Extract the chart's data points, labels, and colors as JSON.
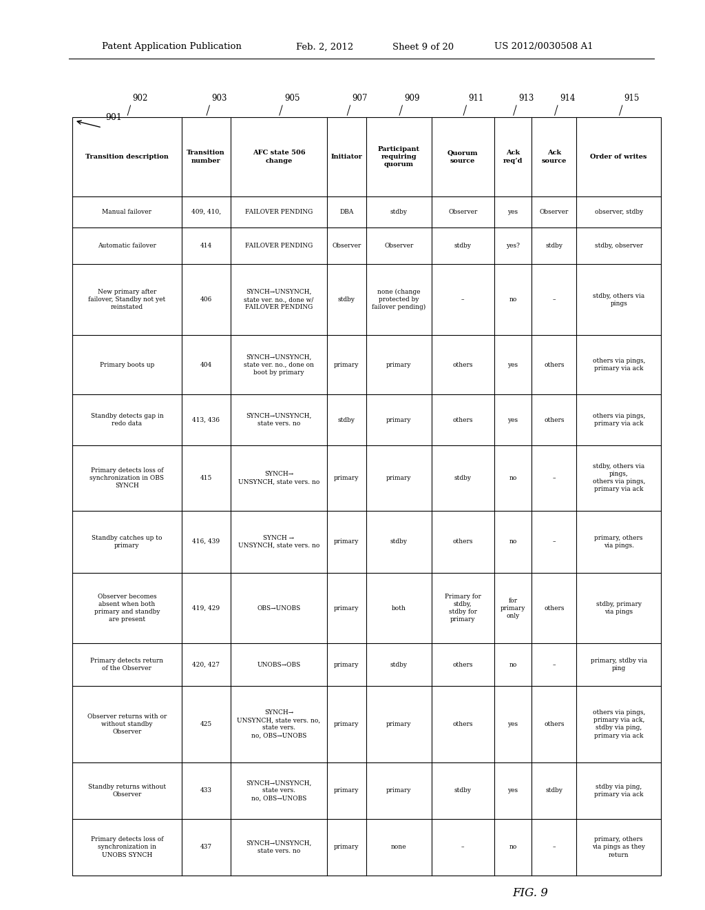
{
  "header_line1": "Patent Application Publication",
  "header_date": "Feb. 2, 2012",
  "header_sheet": "Sheet 9 of 20",
  "header_patent": "US 2012/0030508 A1",
  "fig_label": "FIG. 9",
  "col_headers": [
    "Transition description",
    "Transition\nnumber",
    "AFC state 506\nchange",
    "Initiator",
    "Participant\nrequiring\nquorum",
    "Quorum\nsource",
    "Ack\nreq’d",
    "Ack\nsource",
    "Order of writes"
  ],
  "col_refs": [
    "902",
    "903",
    "905",
    "907",
    "909",
    "911",
    "913",
    "914",
    "915"
  ],
  "rows": [
    {
      "desc": "Manual failover",
      "trans_num": "409, 410,",
      "afc_change": "FAILOVER PENDING",
      "initiator": "DBA",
      "participant": "stdby",
      "quorum": "Observer",
      "ack_reqd": "yes",
      "ack_source": "Observer",
      "order_writes": "observer, stdby"
    },
    {
      "desc": "Automatic failover",
      "trans_num": "414",
      "afc_change": "FAILOVER PENDING",
      "initiator": "Observer",
      "participant": "Observer",
      "quorum": "stdby",
      "ack_reqd": "yes?",
      "ack_source": "stdby",
      "order_writes": "stdby, observer"
    },
    {
      "desc": "New primary after\nfailover, Standby not yet\nreinstated",
      "trans_num": "406",
      "afc_change": "SYNCH→UNSYNCH,\nstate ver. no., done w/\nFAILOVER PENDING",
      "initiator": "stdby",
      "participant": "none (change\nprotected by\nfailover pending)",
      "quorum": "–",
      "ack_reqd": "no",
      "ack_source": "–",
      "order_writes": "stdby, others via\npings"
    },
    {
      "desc": "Primary boots up",
      "trans_num": "404",
      "afc_change": "SYNCH→UNSYNCH,\nstate ver. no., done on\nboot by primary",
      "initiator": "primary",
      "participant": "primary",
      "quorum": "others",
      "ack_reqd": "yes",
      "ack_source": "others",
      "order_writes": "others via pings,\nprimary via ack"
    },
    {
      "desc": "Standby detects gap in\nredo data",
      "trans_num": "413, 436",
      "afc_change": "SYNCH→UNSYNCH,\nstate vers. no",
      "initiator": "stdby",
      "participant": "primary",
      "quorum": "others",
      "ack_reqd": "yes",
      "ack_source": "others",
      "order_writes": "others via pings,\nprimary via ack"
    },
    {
      "desc": "Primary detects loss of\nsynchronization in OBS\nSYNCH",
      "trans_num": "415",
      "afc_change": "SYNCH→\nUNSYNCH, state vers. no",
      "initiator": "primary",
      "participant": "primary",
      "quorum": "stdby",
      "ack_reqd": "no",
      "ack_source": "–",
      "order_writes": "stdby, others via\npings,\nothers via pings,\nprimary via ack"
    },
    {
      "desc": "Standby catches up to\nprimary",
      "trans_num": "416, 439",
      "afc_change": "SYNCH →\nUNSYNCH, state vers. no",
      "initiator": "primary",
      "participant": "stdby",
      "quorum": "others",
      "ack_reqd": "no",
      "ack_source": "–",
      "order_writes": "primary, others\nvia pings."
    },
    {
      "desc": "Observer becomes\nabsent when both\nprimary and standby\nare present",
      "trans_num": "419, 429",
      "afc_change": "OBS→UNOBS",
      "initiator": "primary",
      "participant": "both",
      "quorum": "Primary for\nstdby,\nstdby for\nprimary",
      "ack_reqd": "for\nprimary\nonly",
      "ack_source": "others",
      "order_writes": "stdby, primary\nvia pings"
    },
    {
      "desc": "Primary detects return\nof the Observer",
      "trans_num": "420, 427",
      "afc_change": "UNOBS→OBS",
      "initiator": "primary",
      "participant": "stdby",
      "quorum": "others",
      "ack_reqd": "no",
      "ack_source": "–",
      "order_writes": "primary, stdby via\nping"
    },
    {
      "desc": "Observer returns with or\nwithout standby\nObserver",
      "trans_num": "425",
      "afc_change": "SYNCH→\nUNSYNCH, state vers. no,\nstate vers.\nno, OBS→UNOBS",
      "initiator": "primary",
      "participant": "primary",
      "quorum": "others",
      "ack_reqd": "yes",
      "ack_source": "others",
      "order_writes": "others via pings,\nprimary via ack,\nstdby via ping,\nprimary via ack"
    },
    {
      "desc": "Standby returns without\nObserver",
      "trans_num": "433",
      "afc_change": "SYNCH→UNSYNCH,\nstate vers.\nno, OBS→UNOBS",
      "initiator": "primary",
      "participant": "primary",
      "quorum": "stdby",
      "ack_reqd": "yes",
      "ack_source": "stdby",
      "order_writes": "stdby via ping,\nprimary via ack"
    },
    {
      "desc": "Primary detects loss of\nsynchronization in\nUNOBS SYNCH",
      "trans_num": "437",
      "afc_change": "SYNCH→UNSYNCH,\nstate vers. no",
      "initiator": "primary",
      "participant": "none",
      "quorum": "–",
      "ack_reqd": "no",
      "ack_source": "–",
      "order_writes": "primary, others\nvia pings as they\nreturn"
    }
  ],
  "background": "#ffffff",
  "text_color": "#000000",
  "line_color": "#000000"
}
